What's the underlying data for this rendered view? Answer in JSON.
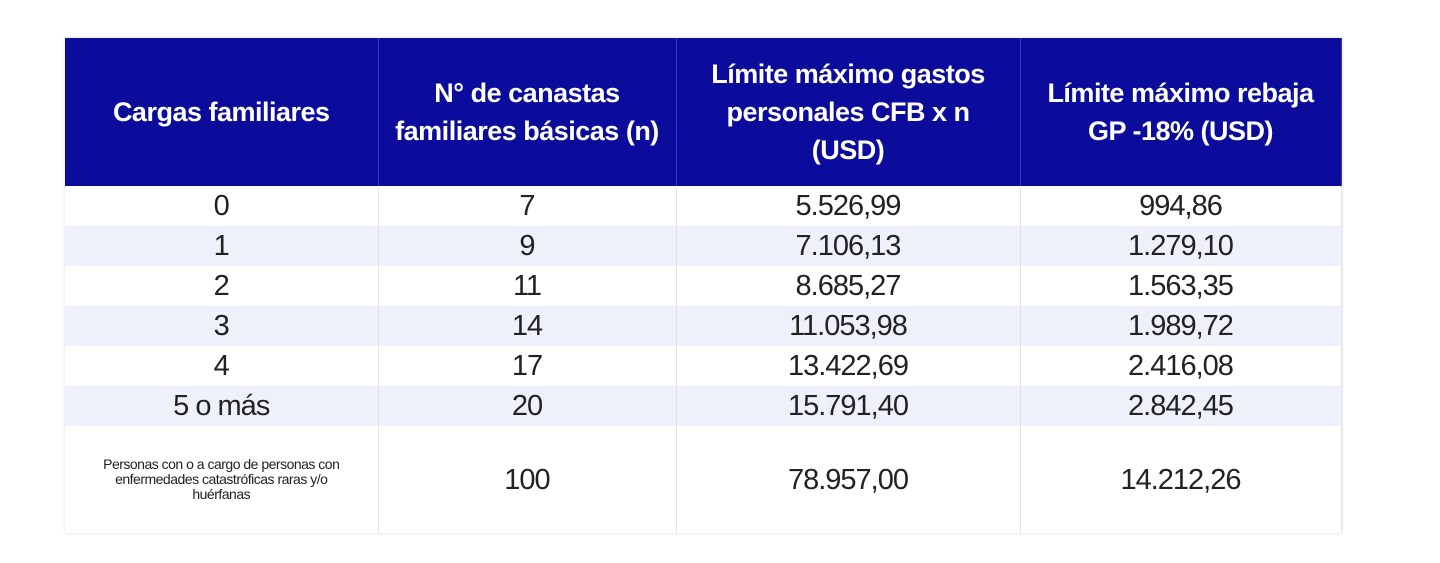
{
  "table": {
    "header": [
      "Cargas familiares",
      "N° de canastas familiares básicas (n)",
      "Límite máximo gastos personales CFB x n (USD)",
      "Límite máximo rebaja GP -18% (USD)"
    ],
    "rows": [
      [
        "0",
        "7",
        "5.526,99",
        "994,86"
      ],
      [
        "1",
        "9",
        "7.106,13",
        "1.279,10"
      ],
      [
        "2",
        "11",
        "8.685,27",
        "1.563,35"
      ],
      [
        "3",
        "14",
        "11.053,98",
        "1.989,72"
      ],
      [
        "4",
        "17",
        "13.422,69",
        "2.416,08"
      ],
      [
        "5 o más",
        "20",
        "15.791,40",
        "2.842,45"
      ],
      [
        "Personas con o a cargo de personas con enfermedades catastróficas raras y/o huérfanas",
        "100",
        "78.957,00",
        "14.212,26"
      ]
    ]
  }
}
